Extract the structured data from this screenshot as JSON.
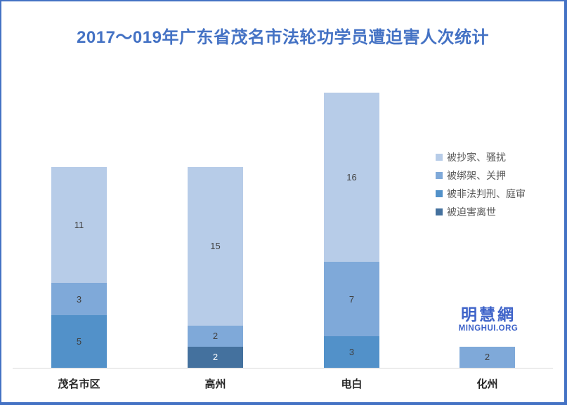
{
  "title": "2017～019年广东省茂名市法轮功学员遭迫害人次统计",
  "watermark": {
    "cn": "明慧網",
    "en": "MINGHUI.ORG"
  },
  "colors": {
    "frame_border": "#4472C4",
    "title_text": "#4472C4",
    "axis_line": "#D9D9D9",
    "segment_label": "#404040",
    "segment_label_on_dark": "#FFFFFF",
    "legend_text": "#595959",
    "watermark_blue": "#3E63C9"
  },
  "chart_data": {
    "type": "bar",
    "stacked": true,
    "title": "2017～019年广东省茂名市法轮功学员遭迫害人次统计",
    "categories": [
      "茂名市区",
      "高州",
      "电白",
      "化州"
    ],
    "series": [
      {
        "name": "被抄家、骚扰",
        "color": "#B7CCE8",
        "values": [
          11,
          15,
          16,
          0
        ]
      },
      {
        "name": "被绑架、关押",
        "color": "#7FA9D9",
        "values": [
          3,
          2,
          7,
          2
        ]
      },
      {
        "name": "被非法判刑、庭审",
        "color": "#5291C9",
        "values": [
          5,
          0,
          3,
          0
        ]
      },
      {
        "name": "被迫害离世",
        "color": "#44719E",
        "values": [
          0,
          2,
          0,
          0
        ]
      }
    ],
    "totals": [
      19,
      19,
      26,
      2
    ],
    "xlabel": "",
    "ylabel": "",
    "ylim": [
      0,
      26
    ],
    "grid": false,
    "legend_position": "right",
    "data_labels": true
  }
}
